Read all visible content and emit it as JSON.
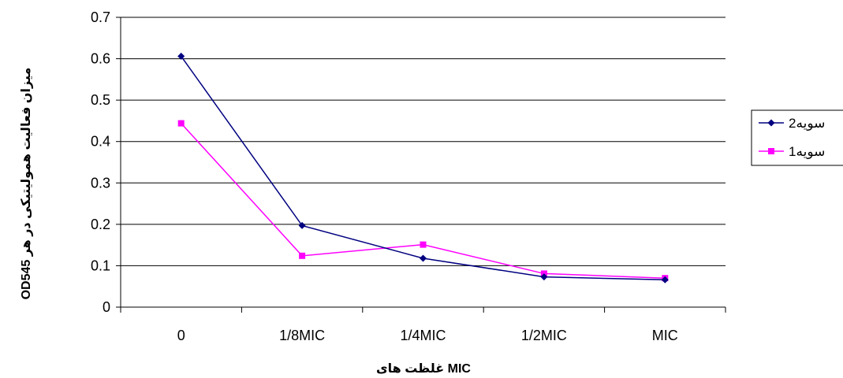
{
  "chart_data": {
    "type": "line",
    "title": "",
    "xlabel": "غلظت های MIC",
    "ylabel": "OD545 میزان فعالیت همولیتیکی در هر",
    "categories": [
      "0",
      "1/8MIC",
      "1/4MIC",
      "1/2MIC",
      "MIC"
    ],
    "ylim": [
      0,
      0.7
    ],
    "yticks": [
      0,
      0.1,
      0.2,
      0.3,
      0.4,
      0.5,
      0.6,
      0.7
    ],
    "grid": true,
    "legend_position": "right",
    "series": [
      {
        "name": "سویه2",
        "color": "#000080",
        "marker": "diamond",
        "values": [
          0.606,
          0.197,
          0.118,
          0.073,
          0.066
        ]
      },
      {
        "name": "سویه1",
        "color": "#FF00FF",
        "marker": "square",
        "values": [
          0.444,
          0.124,
          0.151,
          0.081,
          0.07
        ]
      }
    ]
  }
}
